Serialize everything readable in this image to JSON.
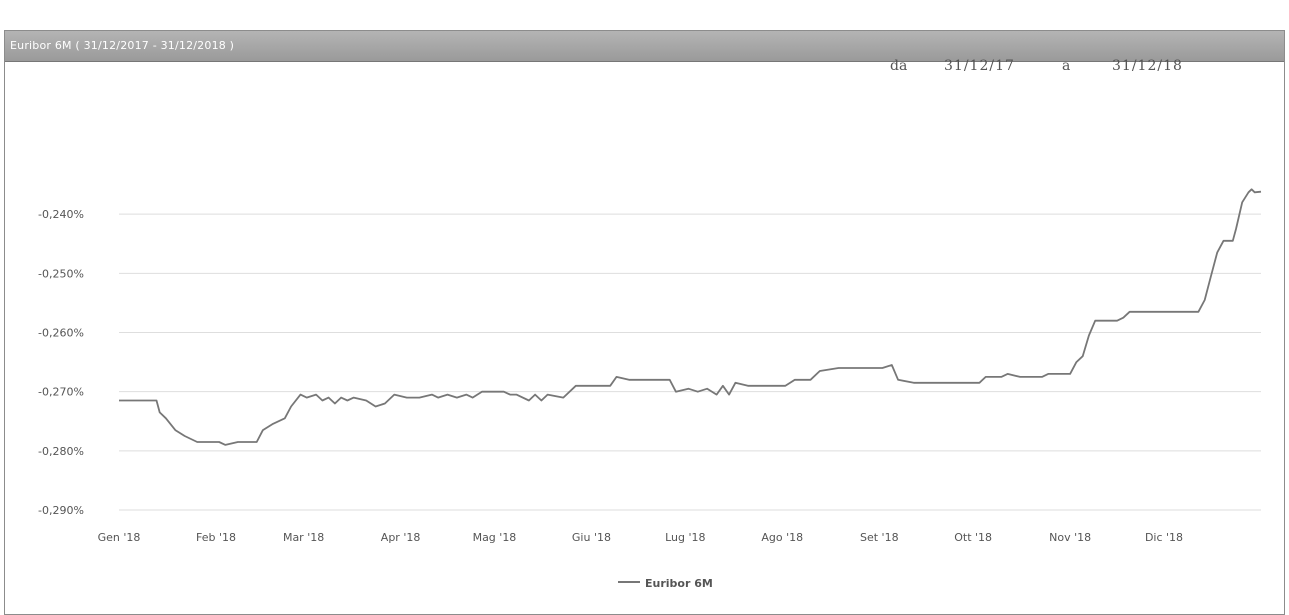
{
  "window": {
    "title": "Euribor 6M ( 31/12/2017 - 31/12/2018 )"
  },
  "range": {
    "from_label": "da",
    "from_value": "31/12/17",
    "to_label": "a",
    "to_value": "31/12/18"
  },
  "chart_data": {
    "type": "line",
    "title": "",
    "xlabel": "",
    "ylabel": "",
    "y_tick_labels": [
      "-0,240%",
      "-0,250%",
      "-0,260%",
      "-0,270%",
      "-0,280%",
      "-0,290%"
    ],
    "y_ticks": [
      -0.24,
      -0.25,
      -0.26,
      -0.27,
      -0.28,
      -0.29
    ],
    "ylim": [
      -0.29,
      -0.23
    ],
    "x_tick_labels": [
      "Gen '18",
      "Feb '18",
      "Mar '18",
      "Apr '18",
      "Mag '18",
      "Giu '18",
      "Lug '18",
      "Ago '18",
      "Set '18",
      "Ott '18",
      "Nov '18",
      "Dic '18"
    ],
    "x_ticks": [
      1,
      32,
      60,
      91,
      121,
      152,
      182,
      213,
      244,
      274,
      305,
      335
    ],
    "xlim": [
      1,
      366
    ],
    "grid": "horizontal",
    "legend": "bottom-center",
    "series": [
      {
        "name": "Euribor 6M",
        "color": "#777777",
        "points": [
          [
            1,
            -0.2715
          ],
          [
            13,
            -0.2715
          ],
          [
            14,
            -0.2735
          ],
          [
            16,
            -0.2745
          ],
          [
            19,
            -0.2765
          ],
          [
            22,
            -0.2775
          ],
          [
            26,
            -0.2785
          ],
          [
            33,
            -0.2785
          ],
          [
            35,
            -0.279
          ],
          [
            39,
            -0.2785
          ],
          [
            45,
            -0.2785
          ],
          [
            47,
            -0.2765
          ],
          [
            50,
            -0.2755
          ],
          [
            54,
            -0.2745
          ],
          [
            56,
            -0.2725
          ],
          [
            59,
            -0.2705
          ],
          [
            61,
            -0.271
          ],
          [
            64,
            -0.2705
          ],
          [
            66,
            -0.2715
          ],
          [
            68,
            -0.271
          ],
          [
            70,
            -0.272
          ],
          [
            72,
            -0.271
          ],
          [
            74,
            -0.2715
          ],
          [
            76,
            -0.271
          ],
          [
            80,
            -0.2715
          ],
          [
            83,
            -0.2725
          ],
          [
            86,
            -0.272
          ],
          [
            89,
            -0.2705
          ],
          [
            93,
            -0.271
          ],
          [
            97,
            -0.271
          ],
          [
            101,
            -0.2705
          ],
          [
            103,
            -0.271
          ],
          [
            106,
            -0.2705
          ],
          [
            109,
            -0.271
          ],
          [
            112,
            -0.2705
          ],
          [
            114,
            -0.271
          ],
          [
            117,
            -0.27
          ],
          [
            124,
            -0.27
          ],
          [
            126,
            -0.2705
          ],
          [
            128,
            -0.2705
          ],
          [
            132,
            -0.2715
          ],
          [
            134,
            -0.2705
          ],
          [
            136,
            -0.2715
          ],
          [
            138,
            -0.2705
          ],
          [
            143,
            -0.271
          ],
          [
            147,
            -0.269
          ],
          [
            158,
            -0.269
          ],
          [
            160,
            -0.2675
          ],
          [
            164,
            -0.268
          ],
          [
            177,
            -0.268
          ],
          [
            179,
            -0.27
          ],
          [
            183,
            -0.2695
          ],
          [
            186,
            -0.27
          ],
          [
            189,
            -0.2695
          ],
          [
            192,
            -0.2705
          ],
          [
            194,
            -0.269
          ],
          [
            196,
            -0.2705
          ],
          [
            198,
            -0.2685
          ],
          [
            202,
            -0.269
          ],
          [
            214,
            -0.269
          ],
          [
            217,
            -0.268
          ],
          [
            222,
            -0.268
          ],
          [
            225,
            -0.2665
          ],
          [
            231,
            -0.266
          ],
          [
            245,
            -0.266
          ],
          [
            248,
            -0.2655
          ],
          [
            250,
            -0.268
          ],
          [
            255,
            -0.2685
          ],
          [
            276,
            -0.2685
          ],
          [
            278,
            -0.2675
          ],
          [
            283,
            -0.2675
          ],
          [
            285,
            -0.267
          ],
          [
            289,
            -0.2675
          ],
          [
            296,
            -0.2675
          ],
          [
            298,
            -0.267
          ],
          [
            305,
            -0.267
          ],
          [
            307,
            -0.265
          ],
          [
            309,
            -0.264
          ],
          [
            311,
            -0.2605
          ],
          [
            313,
            -0.258
          ],
          [
            320,
            -0.258
          ],
          [
            322,
            -0.2575
          ],
          [
            324,
            -0.2565
          ],
          [
            330,
            -0.2565
          ],
          [
            335,
            -0.2565
          ],
          [
            346,
            -0.2565
          ],
          [
            348,
            -0.2545
          ],
          [
            350,
            -0.2505
          ],
          [
            352,
            -0.2465
          ],
          [
            354,
            -0.2445
          ],
          [
            357,
            -0.2445
          ],
          [
            358,
            -0.2425
          ],
          [
            360,
            -0.238
          ],
          [
            362,
            -0.2363
          ],
          [
            363,
            -0.2358
          ],
          [
            364,
            -0.2363
          ],
          [
            366,
            -0.2362
          ]
        ]
      }
    ]
  }
}
